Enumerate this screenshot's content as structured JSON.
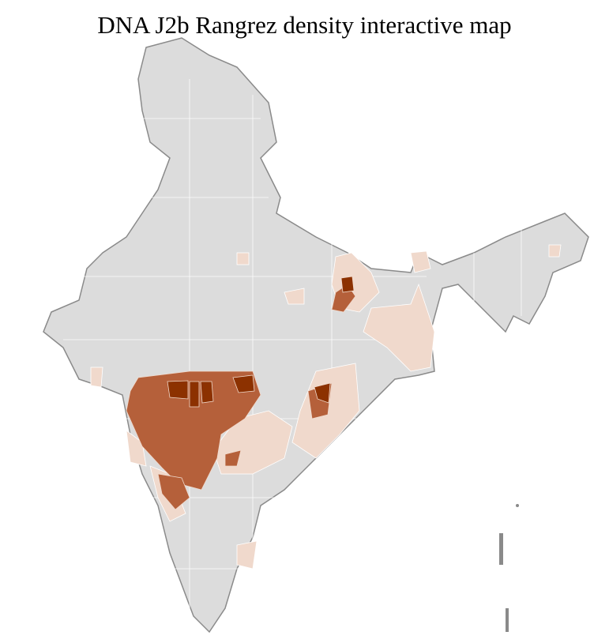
{
  "title": "DNA J2b Rangrez density interactive map",
  "colors": {
    "no_data": "#dcdcdc",
    "low": "#f0d9cc",
    "medium": "#b5603a",
    "high": "#8c3100",
    "district_border": "#ffffff",
    "state_border": "#8a8a8a"
  },
  "density_levels": [
    "none",
    "low",
    "medium",
    "high"
  ]
}
